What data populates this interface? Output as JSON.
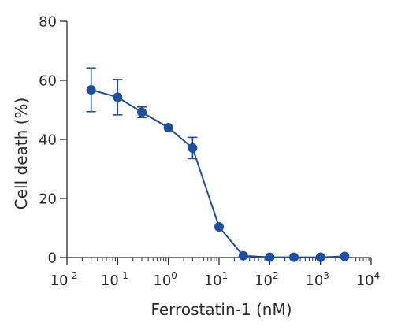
{
  "chart_data": {
    "type": "scatter",
    "xscale": "log",
    "xlabel": "Ferrostatin-1 (nM)",
    "ylabel": "Cell death (%)",
    "xlim": [
      0.01,
      10000
    ],
    "ylim": [
      0,
      80
    ],
    "yticks": [
      0,
      20,
      40,
      60,
      80
    ],
    "xticks": [
      {
        "value": 0.01,
        "base": "10",
        "exp": "-2"
      },
      {
        "value": 0.1,
        "base": "10",
        "exp": "-1"
      },
      {
        "value": 1,
        "base": "10",
        "exp": "0"
      },
      {
        "value": 10,
        "base": "10",
        "exp": "1"
      },
      {
        "value": 100,
        "base": "10",
        "exp": "2"
      },
      {
        "value": 1000,
        "base": "10",
        "exp": "3"
      },
      {
        "value": 10000,
        "base": "10",
        "exp": "4"
      }
    ],
    "grid": false,
    "legend": false,
    "series": [
      {
        "color": "#1f4e9c",
        "connect": true,
        "points": [
          {
            "x": 0.03,
            "y": 56.8,
            "err": 7.4
          },
          {
            "x": 0.1,
            "y": 54.3,
            "err": 6.0
          },
          {
            "x": 0.3,
            "y": 49.2,
            "err": 1.8
          },
          {
            "x": 1,
            "y": 44.0,
            "err": 0
          },
          {
            "x": 3,
            "y": 37.1,
            "err": 3.6
          },
          {
            "x": 10,
            "y": 10.4,
            "err": 0
          },
          {
            "x": 30,
            "y": 0.6,
            "err": 0
          },
          {
            "x": 100,
            "y": 0.1,
            "err": 0
          },
          {
            "x": 300,
            "y": 0.1,
            "err": 0
          },
          {
            "x": 1000,
            "y": 0.1,
            "err": 0
          },
          {
            "x": 3000,
            "y": 0.4,
            "err": 0
          }
        ]
      }
    ]
  }
}
